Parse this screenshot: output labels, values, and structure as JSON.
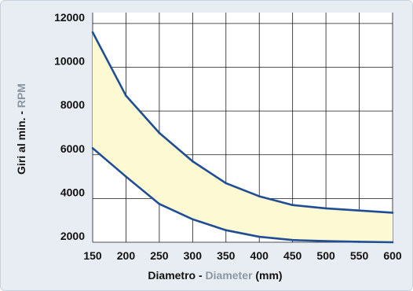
{
  "chart_data": {
    "type": "area",
    "x": [
      150,
      200,
      250,
      300,
      350,
      400,
      450,
      500,
      550,
      600
    ],
    "series": [
      {
        "values": [
          11600,
          8700,
          7000,
          5700,
          4700,
          4100,
          3700,
          3550,
          3450,
          3350
        ]
      },
      {
        "values": [
          6300,
          5000,
          3750,
          3050,
          2550,
          2250,
          2100,
          2050,
          2020,
          2000
        ]
      }
    ],
    "xlim": [
      150,
      600
    ],
    "ylim": [
      2000,
      12500
    ],
    "x_ticks": [
      150,
      200,
      250,
      300,
      350,
      400,
      450,
      500,
      550,
      600
    ],
    "y_ticks": [
      2000,
      4000,
      6000,
      8000,
      10000,
      12000
    ],
    "xlabel": {
      "prefix": "Diametro - ",
      "highlight": "Diameter",
      "suffix": " (mm)"
    },
    "ylabel": {
      "prefix": "Giri al min. - ",
      "highlight": "RPM"
    },
    "grid": true,
    "colors": {
      "line": "#1f4e96",
      "fill": "#fdf9d2",
      "highlight": "#8c97a3",
      "background": "#e8edf3"
    }
  }
}
